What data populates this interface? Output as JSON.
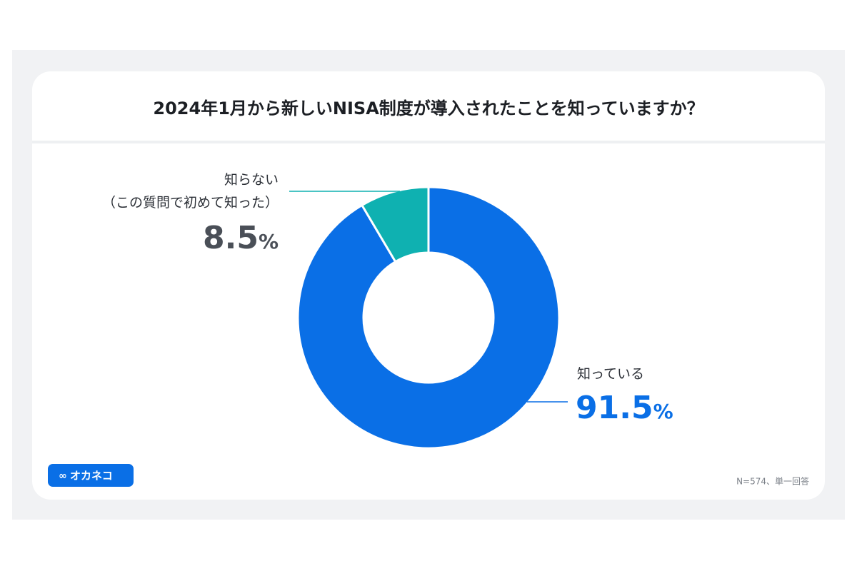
{
  "chart_data": {
    "type": "donut",
    "title": "2024年1月から新しいNISA制度が導入されたことを知っていますか？",
    "categories": [
      "知っている",
      "知らない\n（この質問で初めて知った）"
    ],
    "values": [
      91.5,
      8.5
    ],
    "value_labels": [
      "91.5%",
      "8.5%"
    ],
    "colors": [
      "#0a6fe6",
      "#0fb1b1"
    ],
    "brand": "オカネコ",
    "note": "N=574、単一回答"
  }
}
